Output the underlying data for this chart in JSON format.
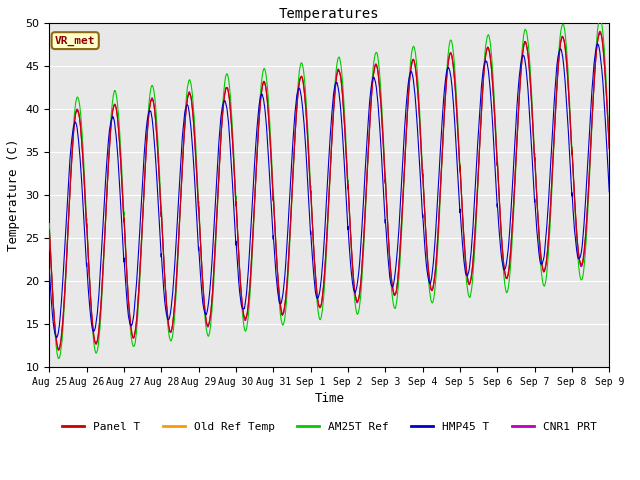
{
  "title": "Temperatures",
  "xlabel": "Time",
  "ylabel": "Temperature (C)",
  "ylim": [
    10,
    50
  ],
  "annotation": "VR_met",
  "background_color": "#e8e8e8",
  "line_colors": {
    "Panel T": "#cc0000",
    "Old Ref Temp": "#ff9900",
    "AM25T Ref": "#00cc00",
    "HMP45 T": "#0000cc",
    "CNR1 PRT": "#bb00bb"
  },
  "legend_labels": [
    "Panel T",
    "Old Ref Temp",
    "AM25T Ref",
    "HMP45 T",
    "CNR1 PRT"
  ],
  "x_tick_labels": [
    "Aug 25",
    "Aug 26",
    "Aug 27",
    "Aug 28",
    "Aug 29",
    "Aug 30",
    "Aug 31",
    "Sep 1",
    "Sep 2",
    "Sep 3",
    "Sep 4",
    "Sep 5",
    "Sep 6",
    "Sep 7",
    "Sep 8",
    "Sep 9"
  ],
  "num_days": 15,
  "font_family": "monospace"
}
